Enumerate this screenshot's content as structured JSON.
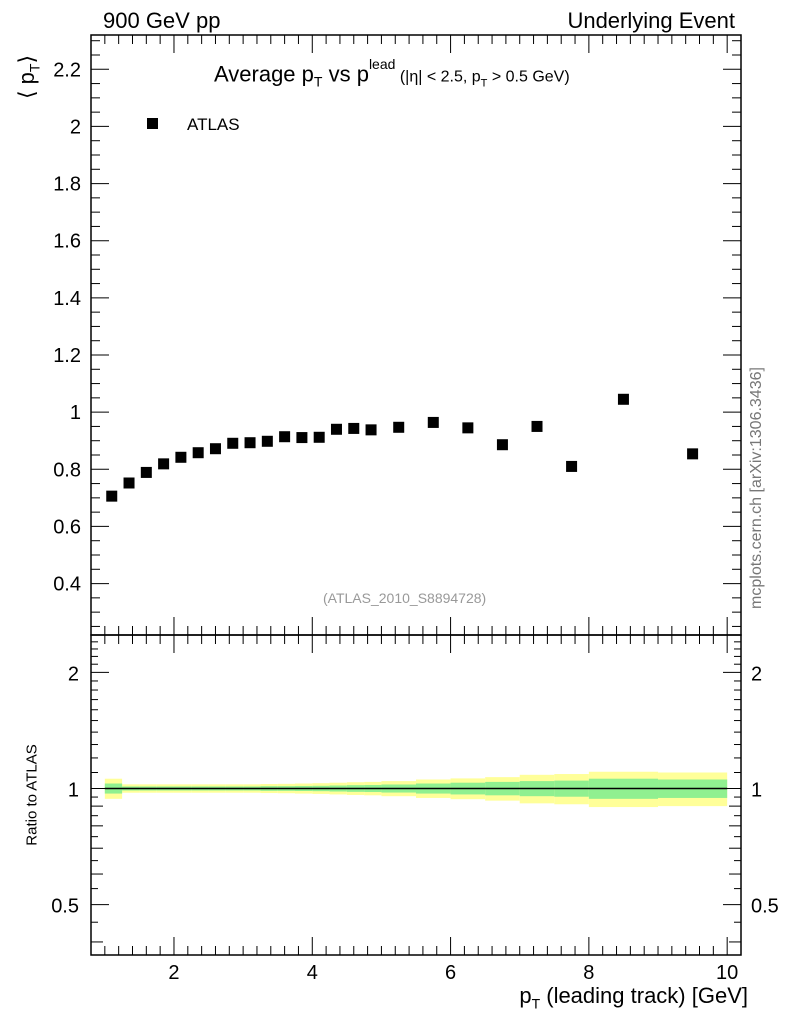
{
  "header": {
    "left": "900 GeV pp",
    "right": "Underlying Event"
  },
  "side_label": "mcplots.cern.ch [arXiv:1306.3436]",
  "chart_data": [
    {
      "type": "scatter",
      "title_parts": {
        "main": "Average p",
        "sub_t": "T",
        "vs": " vs p",
        "sup_lead": "lead",
        "cuts_a": " (|η| < 2.5, p",
        "cuts_sub": "T",
        "cuts_b": " > 0.5 GeV)"
      },
      "ylabel_parts": {
        "open": "⟨ p",
        "sub": "T",
        "close": "⟩"
      },
      "legend": {
        "marker": "square",
        "label": "ATLAS"
      },
      "annotation": "(ATLAS_2010_S8894728)",
      "xlim": [
        0.8,
        10.2
      ],
      "ylim": [
        0.22,
        2.32
      ],
      "yticks": [
        0.4,
        0.6,
        0.8,
        1,
        1.2,
        1.4,
        1.6,
        1.8,
        2,
        2.2
      ],
      "ytick_labels": [
        "0.4",
        "0.6",
        "0.8",
        "1",
        "1.2",
        "1.4",
        "1.6",
        "1.8",
        "2",
        "2.2"
      ],
      "series": [
        {
          "name": "ATLAS",
          "x": [
            1.1,
            1.35,
            1.6,
            1.85,
            2.1,
            2.35,
            2.6,
            2.85,
            3.1,
            3.35,
            3.6,
            3.85,
            4.1,
            4.35,
            4.6,
            4.85,
            5.25,
            5.75,
            6.25,
            6.75,
            7.25,
            7.75,
            8.5,
            9.5
          ],
          "y": [
            0.706,
            0.752,
            0.789,
            0.819,
            0.842,
            0.858,
            0.872,
            0.891,
            0.893,
            0.898,
            0.914,
            0.911,
            0.912,
            0.94,
            0.943,
            0.938,
            0.947,
            0.964,
            0.945,
            0.886,
            0.95,
            0.81,
            1.045,
            0.854
          ]
        }
      ]
    },
    {
      "type": "area",
      "ylabel": "Ratio to ATLAS",
      "xlabel_parts": {
        "main": "p",
        "sub": "T",
        "rest": " (leading track) [GeV]"
      },
      "xlim": [
        0.8,
        10.2
      ],
      "xticks": [
        2,
        4,
        6,
        8,
        10
      ],
      "xtick_labels": [
        "2",
        "4",
        "6",
        "8",
        "10"
      ],
      "ylim": [
        0.37,
        2.5
      ],
      "yscale": "log",
      "yticks": [
        0.5,
        1,
        2
      ],
      "ytick_labels": [
        "0.5",
        "1",
        "2"
      ],
      "reference_line": 1,
      "bin_edges": [
        1.0,
        1.25,
        1.5,
        1.75,
        2.0,
        2.25,
        2.5,
        2.75,
        3.0,
        3.25,
        3.5,
        3.75,
        4.0,
        4.25,
        4.5,
        4.75,
        5.0,
        5.5,
        6.0,
        6.5,
        7.0,
        7.5,
        8.0,
        9.0,
        10.0
      ],
      "bands": [
        {
          "name": "stat",
          "color": "#90f090",
          "half_width": [
            0.03,
            0.012,
            0.012,
            0.012,
            0.012,
            0.012,
            0.012,
            0.012,
            0.012,
            0.014,
            0.014,
            0.015,
            0.016,
            0.018,
            0.02,
            0.021,
            0.024,
            0.03,
            0.035,
            0.04,
            0.045,
            0.048,
            0.06,
            0.055
          ]
        },
        {
          "name": "syst",
          "color": "#ffff99",
          "half_width": [
            0.06,
            0.025,
            0.025,
            0.025,
            0.025,
            0.025,
            0.025,
            0.025,
            0.025,
            0.027,
            0.028,
            0.03,
            0.032,
            0.035,
            0.038,
            0.04,
            0.045,
            0.055,
            0.062,
            0.07,
            0.085,
            0.09,
            0.105,
            0.1
          ]
        }
      ]
    }
  ],
  "colors": {
    "marker": "#000000",
    "axis": "#000000",
    "annotation": "#999999",
    "side_label": "#777777"
  }
}
